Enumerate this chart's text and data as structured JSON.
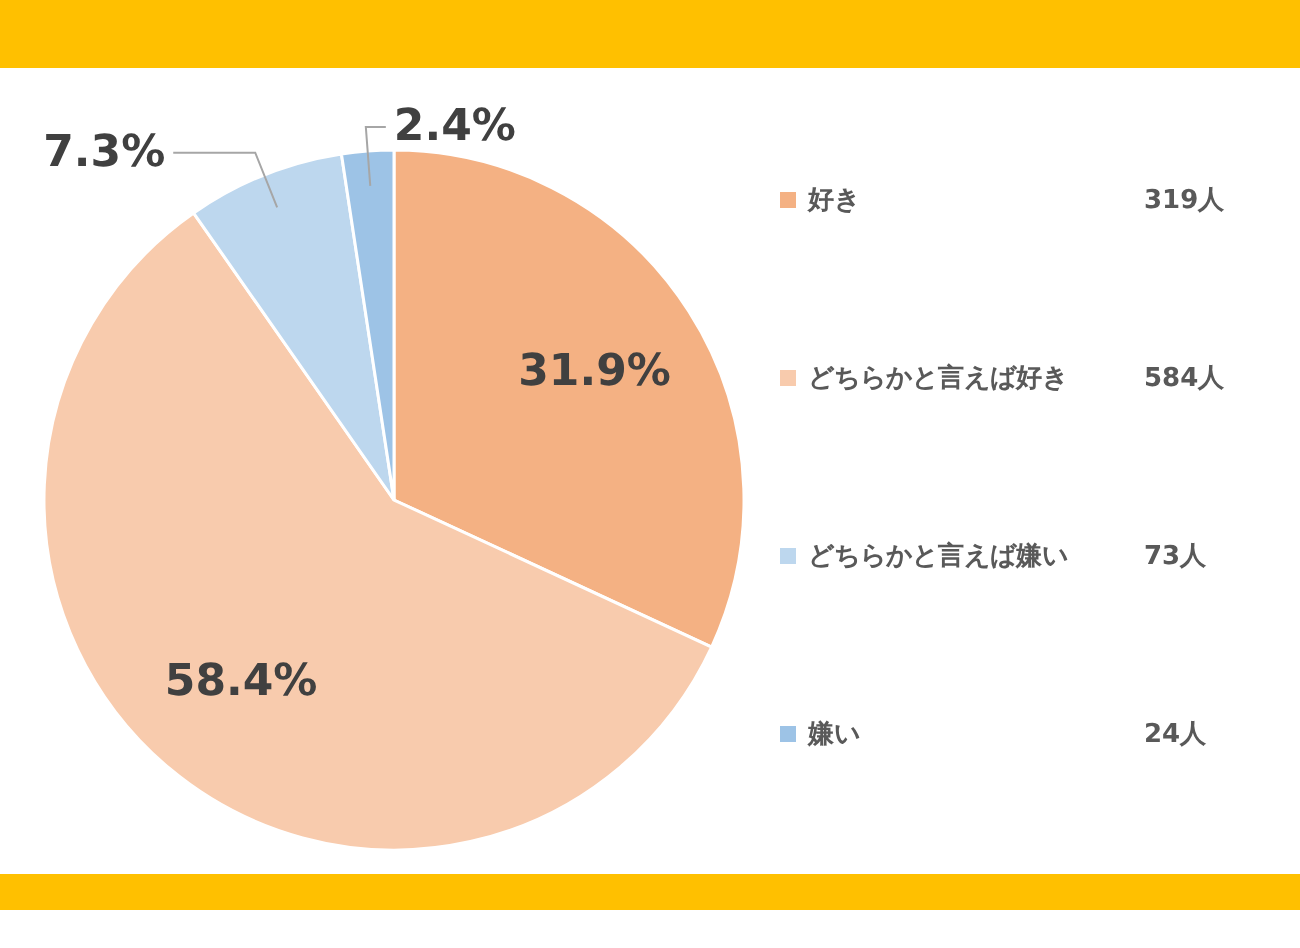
{
  "chart_data": {
    "type": "pie",
    "categories": [
      "好き",
      "どちらかと言えば好き",
      "どちらかと言えば嫌い",
      "嫌い"
    ],
    "values": [
      31.9,
      58.4,
      7.3,
      2.4
    ],
    "value_labels": [
      "31.9%",
      "58.4%",
      "7.3%",
      "2.4%"
    ],
    "colors": [
      "#f4b183",
      "#f8cbad",
      "#bdd7ee",
      "#9dc3e6"
    ],
    "legend": "right",
    "annotations": [
      "319人",
      "584人",
      "73人",
      "24人"
    ]
  }
}
